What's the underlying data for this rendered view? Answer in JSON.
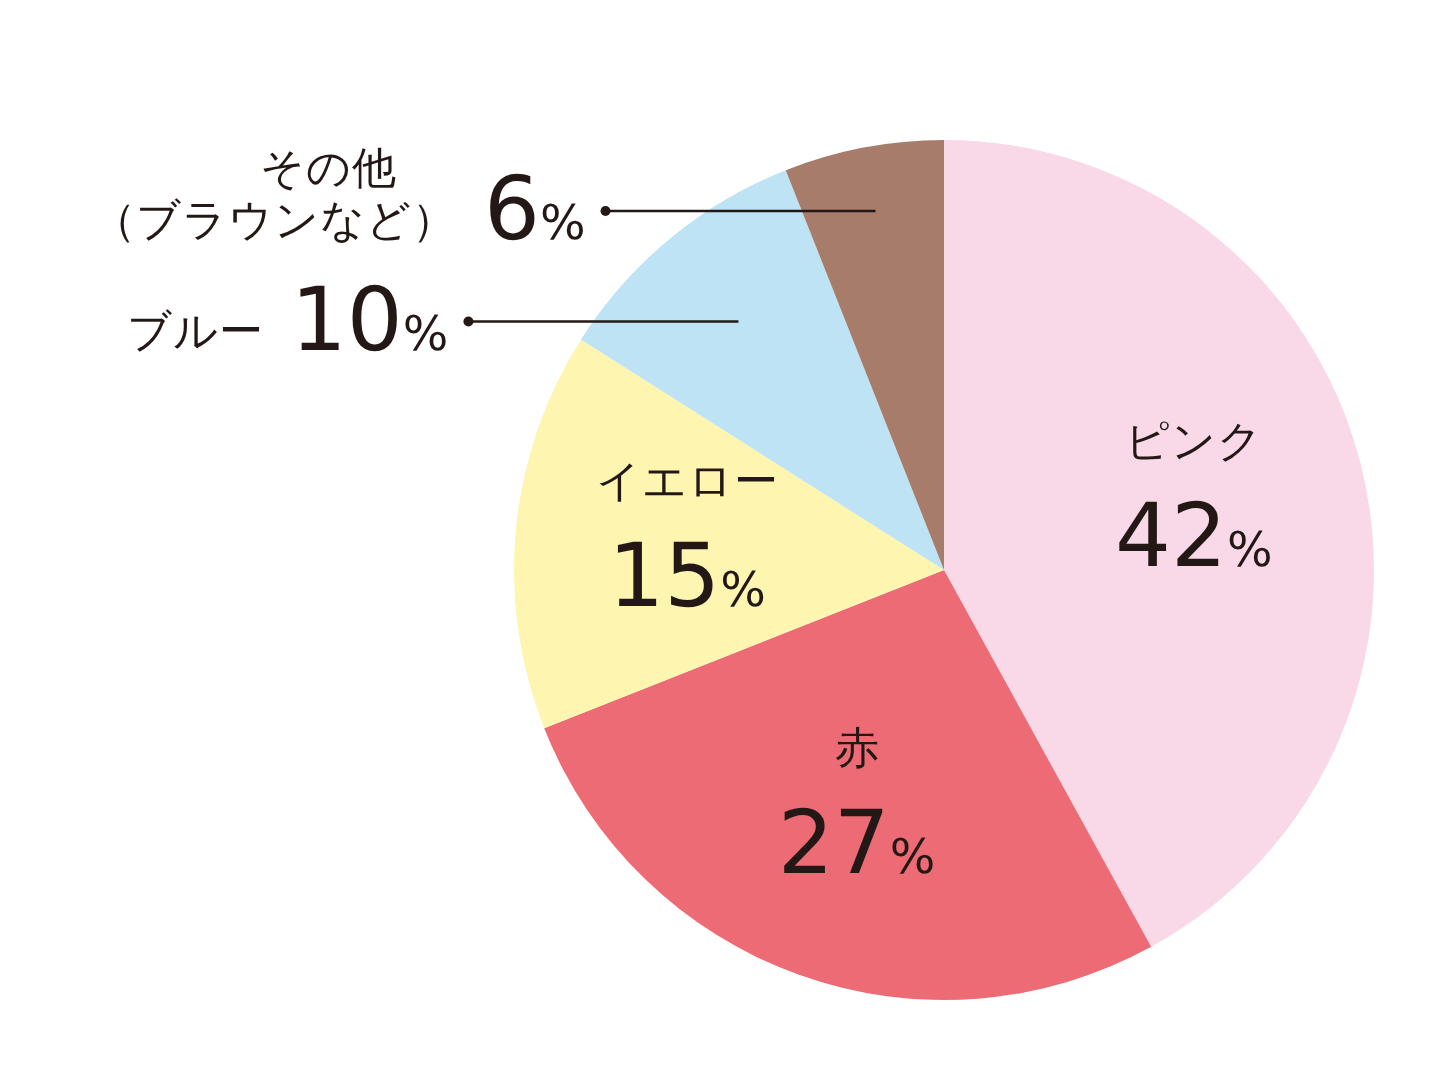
{
  "chart_data": {
    "type": "pie",
    "categories": [
      "ピンク",
      "赤",
      "イエロー",
      "ブルー",
      "その他（ブラウンなど）"
    ],
    "values": [
      42,
      27,
      15,
      10,
      6
    ],
    "value_labels": [
      "42%",
      "27%",
      "15%",
      "10%",
      "6%"
    ],
    "colors": [
      "#f9d9e8",
      "#ec6b74",
      "#fdf5b0",
      "#bde3f5",
      "#a87c6a"
    ]
  }
}
